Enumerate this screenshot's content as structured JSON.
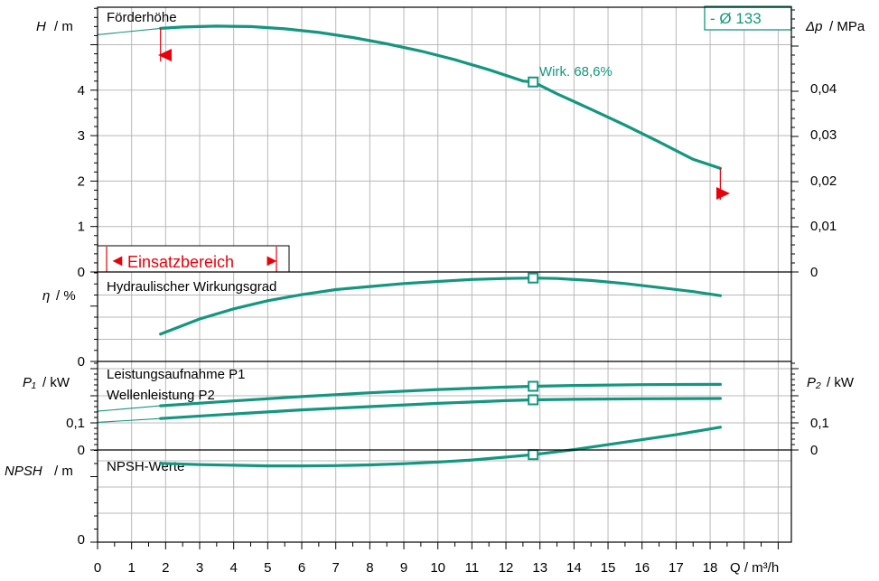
{
  "colors": {
    "curve": "#14967f",
    "red": "#e8000b",
    "grid": "#b8b8b8"
  },
  "x_axis": {
    "label": "Q / m³/h",
    "ticks": [
      "0",
      "1",
      "2",
      "3",
      "4",
      "5",
      "6",
      "7",
      "8",
      "9",
      "10",
      "11",
      "12",
      "13",
      "14",
      "15",
      "16",
      "17",
      "18"
    ]
  },
  "panels": {
    "head": {
      "title": "Förderhöhe",
      "axis_left_symbol": "H",
      "axis_left_unit": "/ m",
      "axis_right_symbol": "Δp",
      "axis_right_unit": "/ MPa",
      "left_ticks": [
        "0",
        "1",
        "2",
        "3",
        "4"
      ],
      "right_ticks": [
        "0",
        "0,01",
        "0,02",
        "0,03",
        "0,04"
      ],
      "efficiency_label": "Wirk.  68,6%",
      "diameter_label": "-    Ø 133",
      "range_label": "Einsatzbereich",
      "range_arrow_left": "◄",
      "range_arrow_right": "►"
    },
    "efficiency": {
      "title": "Hydraulischer Wirkungsgrad",
      "axis_left_symbol": "η",
      "axis_left_unit": "/ %",
      "left_ticks": [
        "0"
      ]
    },
    "power": {
      "title_p1": "Leistungsaufnahme P1",
      "title_p2": "Wellenleistung P2",
      "axis_left_symbol": "P₁",
      "axis_left_unit": "/ kW",
      "axis_right_symbol": "P₂",
      "axis_right_unit": "/ kW",
      "left_ticks": [
        "0",
        "0,1"
      ],
      "right_ticks": [
        "0",
        "0,1"
      ]
    },
    "npsh": {
      "title": "NPSH-Werte",
      "axis_left_symbol": "NPSH",
      "axis_left_unit": "/ m",
      "left_ticks": [
        "0"
      ]
    }
  },
  "chart_data": [
    {
      "type": "line",
      "title": "Förderhöhe",
      "xlabel": "Q / m³/h",
      "ylabel": "H / m",
      "xlim": [
        0,
        20.5
      ],
      "ylim": [
        0,
        5.5
      ],
      "secondary_ylabel": "Δp / MPa",
      "series": [
        {
          "name": "Ø 133",
          "x": [
            1.85,
            2.5,
            3.5,
            4.5,
            5.5,
            6.5,
            7.5,
            8.5,
            9.5,
            10.5,
            11.5,
            12.5,
            12.8,
            13.5,
            14.5,
            15.5,
            16.5,
            17.5,
            18.3
          ],
          "y": [
            5.36,
            5.39,
            5.41,
            5.4,
            5.35,
            5.27,
            5.16,
            5.02,
            4.86,
            4.67,
            4.45,
            4.2,
            4.18,
            3.92,
            3.58,
            3.23,
            2.86,
            2.48,
            2.28
          ]
        }
      ],
      "duty_point": {
        "x": 12.8,
        "y": 4.18
      },
      "efficiency_at_duty_point": "68,6%",
      "operating_range": [
        1.85,
        18.3
      ]
    },
    {
      "type": "line",
      "title": "Hydraulischer Wirkungsgrad",
      "xlabel": "Q / m³/h",
      "ylabel": "η / %",
      "series": [
        {
          "x": [
            1.85,
            3,
            4,
            5,
            6,
            7,
            8,
            9,
            10,
            11,
            12,
            12.8,
            13.5,
            14.5,
            15.5,
            16.5,
            17.5,
            18.3
          ],
          "y": [
            0.27,
            0.42,
            0.52,
            0.6,
            0.66,
            0.71,
            0.74,
            0.77,
            0.79,
            0.81,
            0.82,
            0.824,
            0.82,
            0.8,
            0.77,
            0.73,
            0.69,
            0.65
          ]
        }
      ],
      "duty_point": {
        "x": 12.8,
        "y": 0.824
      }
    },
    {
      "type": "line",
      "title": "Leistungsaufnahme P1 / Wellenleistung P2",
      "xlabel": "Q / m³/h",
      "ylabel": "P₁ / kW",
      "secondary_ylabel": "P₂ / kW",
      "ylim": [
        0,
        0.29
      ],
      "series": [
        {
          "name": "Leistungsaufnahme P1",
          "x": [
            1.85,
            4,
            6,
            8,
            10,
            12,
            12.8,
            14,
            16,
            18.3
          ],
          "y": [
            0.163,
            0.181,
            0.197,
            0.211,
            0.223,
            0.232,
            0.235,
            0.238,
            0.241,
            0.242
          ]
        },
        {
          "name": "Wellenleistung P2",
          "x": [
            1.85,
            4,
            6,
            8,
            10,
            12,
            12.8,
            14,
            16,
            18.3
          ],
          "y": [
            0.116,
            0.133,
            0.148,
            0.16,
            0.172,
            0.182,
            0.185,
            0.187,
            0.189,
            0.19
          ]
        }
      ],
      "duty_points": [
        {
          "x": 12.8,
          "y": 0.235
        },
        {
          "x": 12.8,
          "y": 0.185
        }
      ]
    },
    {
      "type": "line",
      "title": "NPSH-Werte",
      "xlabel": "Q / m³/h",
      "ylabel": "NPSH / m",
      "series": [
        {
          "x": [
            1.85,
            3,
            4,
            5,
            6,
            7,
            8,
            9,
            10,
            11,
            12,
            12.8,
            14,
            15,
            16,
            17,
            18.3
          ],
          "y": [
            0.61,
            0.6,
            0.595,
            0.59,
            0.59,
            0.592,
            0.598,
            0.607,
            0.62,
            0.637,
            0.66,
            0.68,
            0.72,
            0.76,
            0.8,
            0.84,
            0.9
          ]
        }
      ],
      "duty_point": {
        "x": 12.8,
        "y": 0.68
      }
    }
  ]
}
